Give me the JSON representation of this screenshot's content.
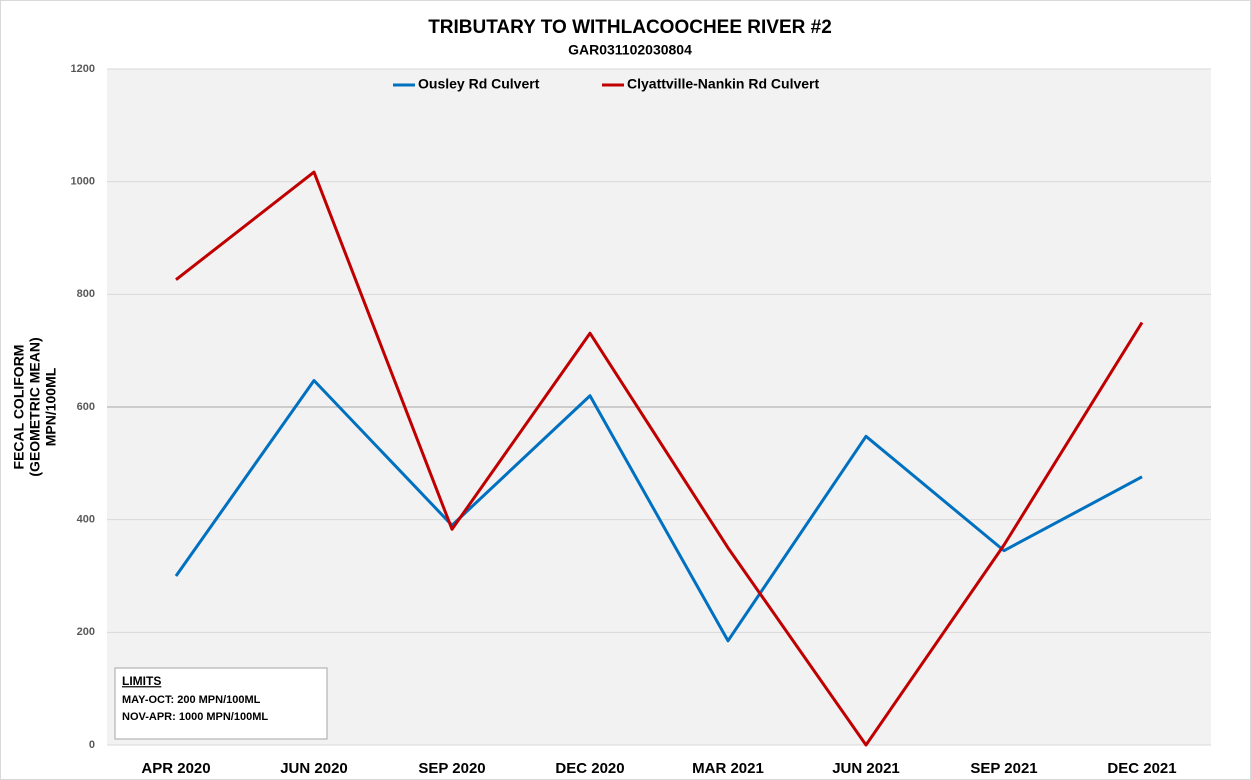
{
  "chart_data": {
    "type": "line",
    "title": "TRIBUTARY TO WITHLACOOCHEE RIVER #2",
    "subtitle": "GAR031102030804",
    "ylabel": [
      "FECAL COLIFORM",
      "(GEOMETRIC MEAN)",
      "MPN/100ML"
    ],
    "categories": [
      "APR 2020",
      "JUN 2020",
      "SEP 2020",
      "DEC 2020",
      "MAR 2021",
      "JUN 2021",
      "SEP 2021",
      "DEC 2021"
    ],
    "series": [
      {
        "name": "Ousley Rd Culvert",
        "color": "#0070c0",
        "values": [
          300,
          647,
          390,
          620,
          185,
          548,
          345,
          476
        ]
      },
      {
        "name": "Clyattville-Nankin Rd Culvert",
        "color": "#c00000",
        "values": [
          826,
          1017,
          383,
          731,
          350,
          0,
          355,
          750
        ]
      }
    ],
    "ylim": [
      0,
      1200
    ],
    "yticks": [
      0,
      200,
      400,
      600,
      800,
      1000,
      1200
    ],
    "grid": true,
    "legend": "top",
    "annotation": {
      "title": "LIMITS",
      "lines": [
        "MAY-OCT: 200 MPN/100ML",
        "NOV-APR: 1000 MPN/100ML"
      ]
    }
  }
}
